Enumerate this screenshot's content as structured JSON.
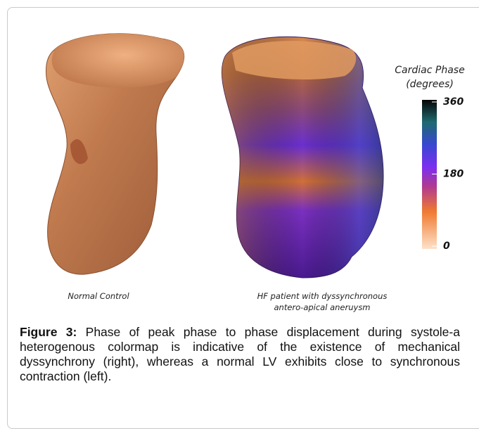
{
  "figure": {
    "panels": [
      {
        "label": [
          "Normal Control"
        ]
      },
      {
        "label": [
          "HF patient with dyssynchronous",
          "antero-apical aneruysm"
        ]
      }
    ],
    "colorbar": {
      "title": [
        "Cardiac Phase",
        "(degrees)"
      ],
      "lim": [
        0,
        360
      ],
      "ticks": [
        0,
        180,
        360
      ]
    },
    "caption": {
      "label": "Figure 3:",
      "text": "Phase of peak phase to phase displacement during systole-a heterogenous colormap is indicative of the existence of mechanical dyssynchrony (right), whereas a normal LV exhibits close to synchronous contraction (left)."
    }
  }
}
